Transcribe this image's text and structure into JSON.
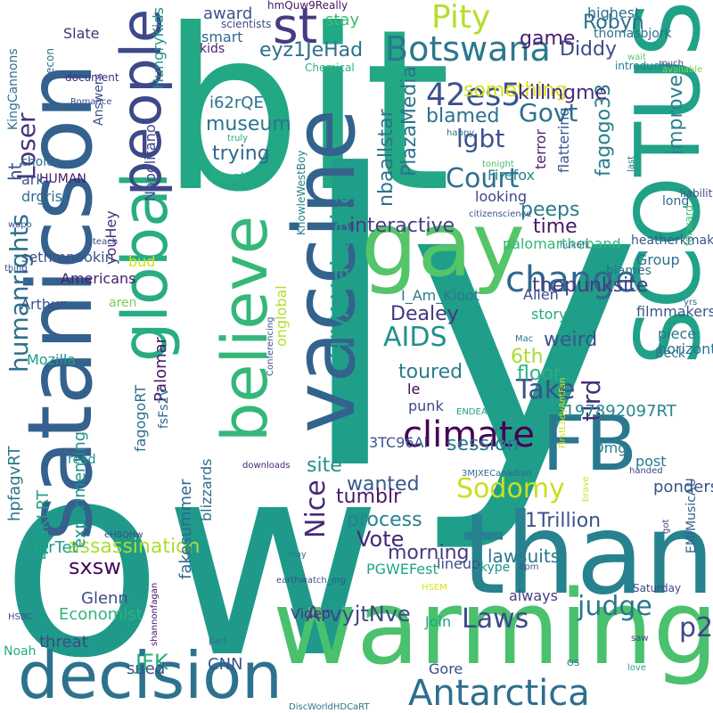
{
  "words": [
    {
      "text": "bit",
      "color": "#22a884"
    },
    {
      "text": "ly",
      "color": "#1f9e89"
    },
    {
      "text": "ow",
      "color": "#1f9a8a"
    },
    {
      "text": "warming",
      "color": "#4ac16d"
    },
    {
      "text": "thank",
      "color": "#26828e"
    },
    {
      "text": "SCOTUS",
      "color": "#1fa287"
    },
    {
      "text": "satanicson",
      "color": "#34618d"
    },
    {
      "text": "FB",
      "color": "#2a788e"
    },
    {
      "text": "gay",
      "color": "#54c568"
    },
    {
      "text": "vaccine",
      "color": "#33638d"
    },
    {
      "text": "decision",
      "color": "#2c728e"
    },
    {
      "text": "believe",
      "color": "#35b779"
    },
    {
      "text": "global",
      "color": "#27ad81"
    },
    {
      "text": "people",
      "color": "#3e4989"
    },
    {
      "text": "st",
      "color": "#443b84"
    },
    {
      "text": "Antarctica",
      "color": "#2e6e8e"
    },
    {
      "text": "climate",
      "color": "#440154"
    },
    {
      "text": "change",
      "color": "#31688e"
    },
    {
      "text": "Botswana",
      "color": "#2a788e"
    },
    {
      "text": "Pity",
      "color": "#b5de2b"
    },
    {
      "text": "42es5",
      "color": "#3b528b"
    },
    {
      "text": "Laws",
      "color": "#3e4a89"
    },
    {
      "text": "AIDS",
      "color": "#21918c"
    },
    {
      "text": "Court",
      "color": "#2e6f8e"
    },
    {
      "text": "Take",
      "color": "#3b528b"
    },
    {
      "text": "Sodomy",
      "color": "#c8e020"
    },
    {
      "text": "judge",
      "color": "#2a788e"
    },
    {
      "text": "p2",
      "color": "#3f4788"
    },
    {
      "text": "Nice",
      "color": "#482878"
    },
    {
      "text": "HIVAHahaaha",
      "color": "#1fa188"
    },
    {
      "text": "Loser",
      "color": "#46337e"
    },
    {
      "text": "lgbt",
      "color": "#3a538b"
    },
    {
      "text": "Govt",
      "color": "#2c728e"
    },
    {
      "text": "humanrights",
      "color": "#2c728e"
    },
    {
      "text": "tlrd",
      "color": "#472d7b"
    },
    {
      "text": "sxsw",
      "color": "#46085c"
    },
    {
      "text": "ArvyjtNve",
      "color": "#3e4a89"
    },
    {
      "text": "Vote",
      "color": "#482777"
    },
    {
      "text": "JFK",
      "color": "#29af7f"
    },
    {
      "text": "interactive",
      "color": "#433e85"
    },
    {
      "text": "weird",
      "color": "#3b528b"
    },
    {
      "text": "Dealey",
      "color": "#453581"
    },
    {
      "text": "process",
      "color": "#26828e"
    },
    {
      "text": "assassination",
      "color": "#addc30"
    },
    {
      "text": "1Trillion",
      "color": "#3b528b"
    },
    {
      "text": "game",
      "color": "#481f70"
    },
    {
      "text": "something",
      "color": "#d8e219"
    },
    {
      "text": "blamed",
      "color": "#2d718e"
    },
    {
      "text": "trying",
      "color": "#31688e"
    },
    {
      "text": "museum",
      "color": "#2a768e"
    },
    {
      "text": "Robyn",
      "color": "#2e6e8e"
    },
    {
      "text": "Diddy",
      "color": "#3e4c8a"
    },
    {
      "text": "eyz1JeHad",
      "color": "#2d708e"
    },
    {
      "text": "PlazaMedia",
      "color": "#2b748e"
    },
    {
      "text": "nbaallstar",
      "color": "#2d718e"
    },
    {
      "text": "fagogo33",
      "color": "#26818e"
    },
    {
      "text": "killingme",
      "color": "#472c7a"
    },
    {
      "text": "improve",
      "color": "#26828e"
    },
    {
      "text": "time",
      "color": "#481769"
    },
    {
      "text": "peeps",
      "color": "#287c8e"
    },
    {
      "text": "thepunksite",
      "color": "#433d84"
    },
    {
      "text": "6th",
      "color": "#a8db34"
    },
    {
      "text": "floor",
      "color": "#2ab07f"
    },
    {
      "text": "toured",
      "color": "#287d8e"
    },
    {
      "text": "session",
      "color": "#2a778e"
    },
    {
      "text": "site",
      "color": "#21918c"
    },
    {
      "text": "morning",
      "color": "#443983"
    },
    {
      "text": "wanted",
      "color": "#38598c"
    },
    {
      "text": "tumblr",
      "color": "#481a6c"
    },
    {
      "text": "ponders",
      "color": "#3b528b"
    },
    {
      "text": "Glenn",
      "color": "#3e4c8a"
    },
    {
      "text": "Economist",
      "color": "#2fb47c"
    },
    {
      "text": "CNN",
      "color": "#3a548c"
    },
    {
      "text": "sued",
      "color": "#3b518b"
    },
    {
      "text": "threat",
      "color": "#404688"
    },
    {
      "text": "hpfagvRT",
      "color": "#2a768e"
    },
    {
      "text": "FourTet",
      "color": "#1fa188"
    },
    {
      "text": "42aKLRT",
      "color": "#1f9f88"
    },
    {
      "text": "experimenting",
      "color": "#20928c"
    },
    {
      "text": "Palomar",
      "color": "#481b6d"
    },
    {
      "text": "fakesummer",
      "color": "#31688e"
    },
    {
      "text": "blizzards",
      "color": "#2e6e8e"
    },
    {
      "text": "horizontal",
      "color": "#2c728e"
    },
    {
      "text": "palomartheband",
      "color": "#32b67a"
    },
    {
      "text": "I_Am_Kloot",
      "color": "#287c8e"
    },
    {
      "text": "Allen",
      "color": "#3e4989"
    },
    {
      "text": "story",
      "color": "#22a785"
    },
    {
      "text": "lineup",
      "color": "#3d4e8a"
    },
    {
      "text": "PGWEFest",
      "color": "#20a486"
    },
    {
      "text": "always",
      "color": "#433e85"
    },
    {
      "text": "Join",
      "color": "#20a486"
    },
    {
      "text": "Gore",
      "color": "#3e4989"
    },
    {
      "text": "lawsuits",
      "color": "#2a788e"
    },
    {
      "text": "3197892097RT",
      "color": "#24868e"
    },
    {
      "text": "punk",
      "color": "#3f4889"
    },
    {
      "text": "le",
      "color": "#440154"
    },
    {
      "text": "3TC96Al",
      "color": "#3a548c"
    },
    {
      "text": "Omg",
      "color": "#26818e"
    },
    {
      "text": "post",
      "color": "#2a788e"
    },
    {
      "text": "Beck",
      "color": "#2c738e"
    },
    {
      "text": "piece",
      "color": "#2b758e"
    },
    {
      "text": "filmmakers",
      "color": "#39568c"
    },
    {
      "text": "Group",
      "color": "#2e6f8e"
    },
    {
      "text": "blames",
      "color": "#2f6c8e"
    },
    {
      "text": "heatherkmak",
      "color": "#3a548c"
    },
    {
      "text": "long",
      "color": "#2f6b8e"
    },
    {
      "text": "looking",
      "color": "#404588"
    },
    {
      "text": "Firefox",
      "color": "#24878e"
    },
    {
      "text": "terror",
      "color": "#482071"
    },
    {
      "text": "flattering",
      "color": "#38598c"
    },
    {
      "text": "highest",
      "color": "#2e6e8e"
    },
    {
      "text": "thomasbjork",
      "color": "#2e6f8e"
    },
    {
      "text": "introduces",
      "color": "#26828e"
    },
    {
      "text": "wait",
      "color": "#5cc863"
    },
    {
      "text": "available",
      "color": "#7ad151"
    },
    {
      "text": "much",
      "color": "#404588"
    },
    {
      "text": "scientists",
      "color": "#3d4d8a"
    },
    {
      "text": "hmQuw9Really",
      "color": "#481467"
    },
    {
      "text": "HungryKids",
      "color": "#21908d"
    },
    {
      "text": "Slate",
      "color": "#46327e"
    },
    {
      "text": "award",
      "color": "#3a538b"
    },
    {
      "text": "smart",
      "color": "#31688e"
    },
    {
      "text": "kids",
      "color": "#482173"
    },
    {
      "text": "stay",
      "color": "#3fbc73"
    },
    {
      "text": "i62rQE",
      "color": "#2c718e"
    },
    {
      "text": "Chemical",
      "color": "#2db27d"
    },
    {
      "text": "document",
      "color": "#46307e"
    },
    {
      "text": "econ",
      "color": "#2d718e"
    },
    {
      "text": "KingCannons",
      "color": "#2c738e"
    },
    {
      "text": "Romance",
      "color": "#3d4d8a"
    },
    {
      "text": "Answers",
      "color": "#3b528b"
    },
    {
      "text": "Napolitano",
      "color": "#3e4989"
    },
    {
      "text": "youHey",
      "color": "#472d7b"
    },
    {
      "text": "Meet",
      "color": "#2ab07f"
    },
    {
      "text": "KnowleWestBoy",
      "color": "#26828e"
    },
    {
      "text": "onglobal",
      "color": "#b5de2b"
    },
    {
      "text": "truly",
      "color": "#20a386"
    },
    {
      "text": "tonight",
      "color": "#4ac16d"
    },
    {
      "text": "happy",
      "color": "#2d718e"
    },
    {
      "text": "last",
      "color": "#2d718e"
    },
    {
      "text": "forward",
      "color": "#3bbb75"
    },
    {
      "text": "liability",
      "color": "#39568c"
    },
    {
      "text": "huk6fk",
      "color": "#2c728e"
    },
    {
      "text": "citizenscience",
      "color": "#3a548c"
    },
    {
      "text": "teach",
      "color": "#3f4788"
    },
    {
      "text": "HUMAN",
      "color": "#48186a"
    },
    {
      "text": "ark",
      "color": "#3b528b"
    },
    {
      "text": "ht",
      "color": "#3a538b"
    },
    {
      "text": "choice",
      "color": "#2d708e"
    },
    {
      "text": "drgrist",
      "color": "#2e6f8e"
    },
    {
      "text": "sethmnookin",
      "color": "#3b528b"
    },
    {
      "text": "Americans",
      "color": "#481d6f"
    },
    {
      "text": "Arthur",
      "color": "#3b528b"
    },
    {
      "text": "bud",
      "color": "#d2e21b"
    },
    {
      "text": "aren",
      "color": "#7ad151"
    },
    {
      "text": "Mozilla",
      "color": "#1f9a8a"
    },
    {
      "text": "fsFs2V",
      "color": "#31688e"
    },
    {
      "text": "fagogoRT",
      "color": "#2e6e8e"
    },
    {
      "text": "read",
      "color": "#21918c"
    },
    {
      "text": "downloads",
      "color": "#482677"
    },
    {
      "text": "Conferencing",
      "color": "#3b528b"
    },
    {
      "text": "yrs",
      "color": "#31688e"
    },
    {
      "text": "Mac",
      "color": "#2b758e"
    },
    {
      "text": "3MJXECanadian",
      "color": "#2f6b8e"
    },
    {
      "text": "ENDEAVOUR",
      "color": "#20a386"
    },
    {
      "text": "EMIMusicAU",
      "color": "#33638d"
    },
    {
      "text": "got",
      "color": "#3e4a89"
    },
    {
      "text": "brave",
      "color": "#d2e21b"
    },
    {
      "text": "handed",
      "color": "#3e4989"
    },
    {
      "text": "8pm",
      "color": "#38598c"
    },
    {
      "text": "Skype",
      "color": "#21918c"
    },
    {
      "text": "earthwatch_org",
      "color": "#3a548c"
    },
    {
      "text": "eH8QHw",
      "color": "#3e4a89"
    },
    {
      "text": "Saturday",
      "color": "#3f4889"
    },
    {
      "text": "HSEM",
      "color": "#d8e219"
    },
    {
      "text": "Video",
      "color": "#46337e"
    },
    {
      "text": "shannonfagan",
      "color": "#471365"
    },
    {
      "text": "HSBC",
      "color": "#3b528b"
    },
    {
      "text": "part",
      "color": "#2d718e"
    },
    {
      "text": "saw",
      "color": "#3f4788"
    },
    {
      "text": "love",
      "color": "#20a486"
    },
    {
      "text": "OS",
      "color": "#2c728e"
    },
    {
      "text": "DiscWorldHDCaRT",
      "color": "#2c738e"
    },
    {
      "text": "wapo",
      "color": "#39568c"
    },
    {
      "text": "thing",
      "color": "#3e4a89"
    },
    {
      "text": "Noah",
      "color": "#25ac82"
    },
    {
      "text": "may",
      "color": "#2a768e"
    },
    {
      "text": "FirstLadyAntFan",
      "color": "#d2e21b"
    }
  ]
}
